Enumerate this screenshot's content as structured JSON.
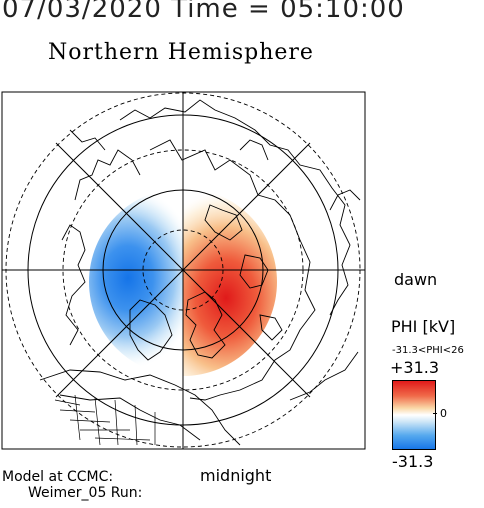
{
  "header": {
    "date_time": "07/03/2020 Time = 05:10:00",
    "hemisphere": "Northern Hemisphere"
  },
  "labels": {
    "dawn": "dawn",
    "midnight": "midnight",
    "model_at": "Model at CCMC:",
    "run": "Weimer_05 Run:"
  },
  "colorbar": {
    "title": "PHI [kV]",
    "range_text": "-31.3<PHI<26",
    "max_label": "+31.3",
    "zero_label": "0",
    "min_label": "-31.3",
    "colors": {
      "positive": "#e01a1a",
      "neutral": "#ffffff",
      "negative": "#1876e8"
    }
  }
}
